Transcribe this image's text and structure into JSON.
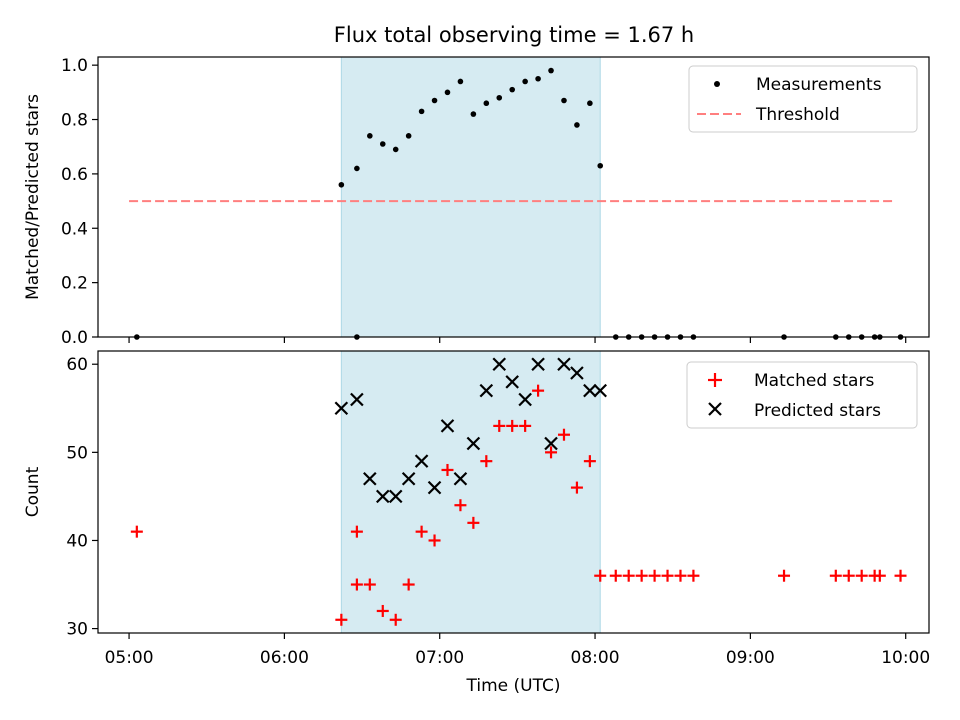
{
  "title": "Flux total observing time = 1.67 h",
  "colors": {
    "shade": "#add8e6",
    "threshold": "#ff7f7f",
    "measurement": "#000000",
    "matched": "#ff0000",
    "predicted": "#000000"
  },
  "chart_data": [
    {
      "type": "scatter",
      "ylabel": "Matched/Predicted stars",
      "xlim": [
        "04:48",
        "10:09"
      ],
      "ylim": [
        0,
        1.03
      ],
      "yticks": [
        0.0,
        0.2,
        0.4,
        0.6,
        0.8,
        1.0
      ],
      "ytick_labels": [
        "0.0",
        "0.2",
        "0.4",
        "0.6",
        "0.8",
        "1.0"
      ],
      "shaded_interval": [
        "06:22",
        "08:02"
      ],
      "legend": {
        "position": "top-right",
        "entries": [
          "Measurements",
          "Threshold"
        ]
      },
      "threshold": {
        "name": "Threshold",
        "value": 0.5,
        "x_range": [
          "05:00",
          "09:55"
        ]
      },
      "series": [
        {
          "name": "Measurements",
          "marker": "dot",
          "x": [
            "05:03",
            "06:28",
            "06:22",
            "06:28",
            "06:33",
            "06:38",
            "06:43",
            "06:48",
            "06:53",
            "06:58",
            "07:03",
            "07:08",
            "07:13",
            "07:18",
            "07:23",
            "07:28",
            "07:33",
            "07:38",
            "07:43",
            "07:48",
            "07:53",
            "07:58",
            "08:02",
            "08:08",
            "08:13",
            "08:18",
            "08:23",
            "08:28",
            "08:33",
            "08:38",
            "09:13",
            "09:33",
            "09:38",
            "09:43",
            "09:48",
            "09:50",
            "09:58"
          ],
          "y": [
            0.0,
            0.0,
            0.56,
            0.62,
            0.74,
            0.71,
            0.69,
            0.74,
            0.83,
            0.87,
            0.9,
            0.94,
            0.82,
            0.86,
            0.88,
            0.91,
            0.94,
            0.95,
            0.98,
            0.87,
            0.78,
            0.86,
            0.63,
            0.0,
            0.0,
            0.0,
            0.0,
            0.0,
            0.0,
            0.0,
            0.0,
            0.0,
            0.0,
            0.0,
            0.0,
            0.0,
            0.0
          ]
        }
      ]
    },
    {
      "type": "scatter",
      "ylabel": "Count",
      "xlabel": "Time (UTC)",
      "xlim": [
        "04:48",
        "10:09"
      ],
      "ylim": [
        29.5,
        61.5
      ],
      "yticks": [
        30,
        40,
        50,
        60
      ],
      "ytick_labels": [
        "30",
        "40",
        "50",
        "60"
      ],
      "xticks": [
        "05:00",
        "06:00",
        "07:00",
        "08:00",
        "09:00",
        "10:00"
      ],
      "shaded_interval": [
        "06:22",
        "08:02"
      ],
      "legend": {
        "position": "top-right",
        "entries": [
          "Matched stars",
          "Predicted stars"
        ]
      },
      "series": [
        {
          "name": "Matched stars",
          "marker": "plus",
          "x": [
            "05:03",
            "06:28",
            "06:22",
            "06:28",
            "06:33",
            "06:38",
            "06:43",
            "06:48",
            "06:53",
            "06:58",
            "07:03",
            "07:08",
            "07:13",
            "07:18",
            "07:23",
            "07:28",
            "07:33",
            "07:38",
            "07:43",
            "07:48",
            "07:53",
            "07:58",
            "08:02",
            "08:08",
            "08:13",
            "08:18",
            "08:23",
            "08:28",
            "08:33",
            "08:38",
            "09:13",
            "09:33",
            "09:38",
            "09:43",
            "09:48",
            "09:50",
            "09:58"
          ],
          "y": [
            41,
            41,
            31,
            35,
            35,
            32,
            31,
            35,
            41,
            40,
            48,
            44,
            42,
            49,
            53,
            53,
            53,
            57,
            50,
            52,
            46,
            49,
            36,
            36,
            36,
            36,
            36,
            36,
            36,
            36,
            36,
            36,
            36,
            36,
            36,
            36,
            36
          ]
        },
        {
          "name": "Predicted stars",
          "marker": "x",
          "x": [
            "06:22",
            "06:28",
            "06:33",
            "06:38",
            "06:43",
            "06:48",
            "06:53",
            "06:58",
            "07:03",
            "07:08",
            "07:13",
            "07:18",
            "07:23",
            "07:28",
            "07:33",
            "07:38",
            "07:43",
            "07:48",
            "07:53",
            "07:58",
            "08:02"
          ],
          "y": [
            55,
            56,
            47,
            45,
            45,
            47,
            49,
            46,
            53,
            47,
            51,
            57,
            60,
            58,
            56,
            60,
            51,
            60,
            59,
            57,
            57
          ]
        }
      ]
    }
  ]
}
